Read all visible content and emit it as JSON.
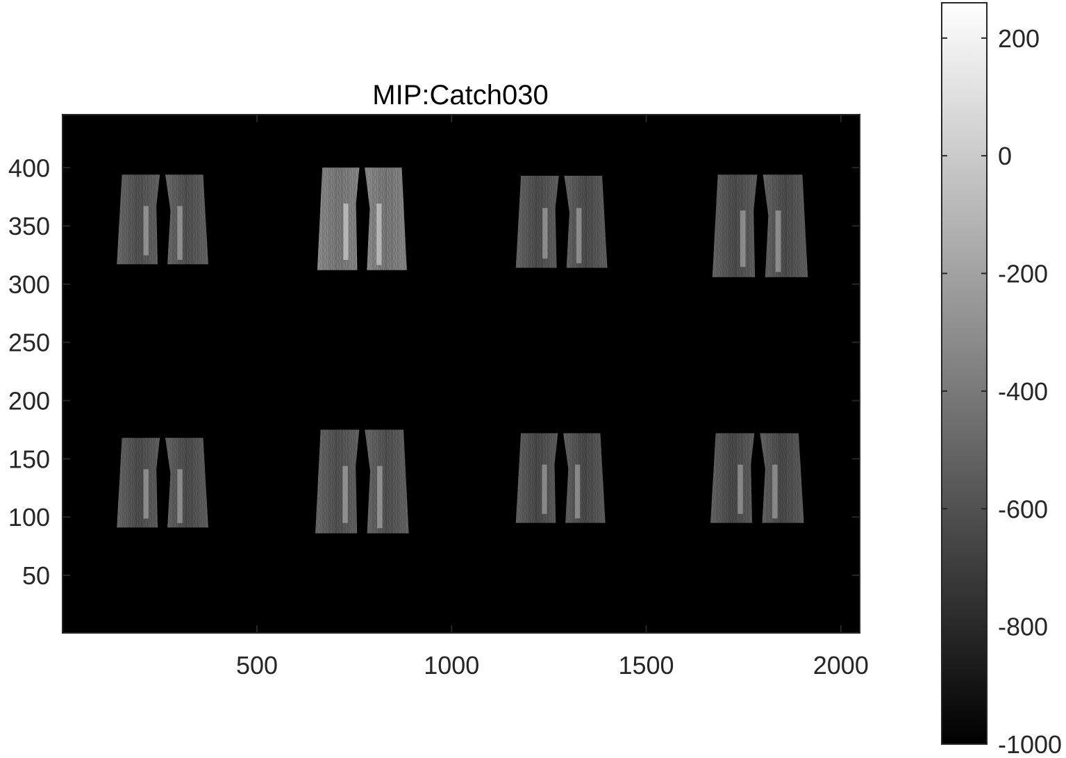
{
  "chart_data": {
    "type": "heatmap",
    "title": "MIP:Catch030",
    "xlabel": "",
    "ylabel": "",
    "xlim": [
      0.5,
      2048.5
    ],
    "ylim": [
      0.5,
      445.5
    ],
    "x_ticks": [
      500,
      1000,
      1500,
      2000
    ],
    "y_ticks": [
      50,
      100,
      150,
      200,
      250,
      300,
      350,
      400
    ],
    "colormap": "gray",
    "background_color": "#000000",
    "colorbar": {
      "placement": "right",
      "clim": [
        -1000,
        260
      ],
      "ticks": [
        -1000,
        -800,
        -600,
        -400,
        -200,
        0,
        200
      ]
    },
    "panels": [
      {
        "id": "top-1",
        "x_range": [
          140,
          375
        ],
        "y_range": [
          317,
          394
        ],
        "brightness": 0.32
      },
      {
        "id": "top-2",
        "x_range": [
          655,
          885
        ],
        "y_range": [
          312,
          400
        ],
        "brightness": 0.48
      },
      {
        "id": "top-3",
        "x_range": [
          1165,
          1400
        ],
        "y_range": [
          314,
          393
        ],
        "brightness": 0.3
      },
      {
        "id": "top-4",
        "x_range": [
          1670,
          1915
        ],
        "y_range": [
          306,
          394
        ],
        "brightness": 0.3
      },
      {
        "id": "bottom-1",
        "x_range": [
          140,
          375
        ],
        "y_range": [
          91,
          168
        ],
        "brightness": 0.3
      },
      {
        "id": "bottom-2",
        "x_range": [
          650,
          890
        ],
        "y_range": [
          86,
          175
        ],
        "brightness": 0.32
      },
      {
        "id": "bottom-3",
        "x_range": [
          1165,
          1395
        ],
        "y_range": [
          95,
          172
        ],
        "brightness": 0.29
      },
      {
        "id": "bottom-4",
        "x_range": [
          1665,
          1905
        ],
        "y_range": [
          95,
          172
        ],
        "brightness": 0.29
      }
    ]
  }
}
